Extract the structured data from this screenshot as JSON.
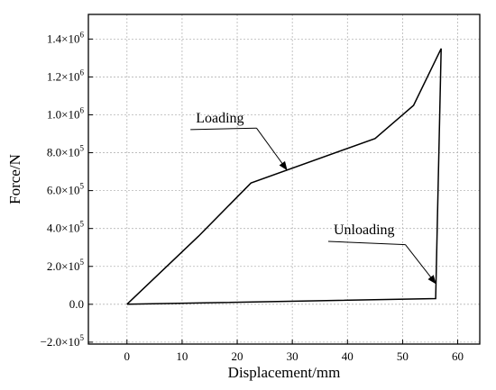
{
  "chart_data": {
    "type": "line",
    "title": "",
    "xlabel": "Displacement/mm",
    "ylabel": "Force/N",
    "xlim": [
      -7,
      64
    ],
    "ylim": [
      -210000,
      1530000
    ],
    "grid": true,
    "legend": "none",
    "x_ticks": [
      {
        "value": 0,
        "label": "0"
      },
      {
        "value": 10,
        "label": "10"
      },
      {
        "value": 20,
        "label": "20"
      },
      {
        "value": 30,
        "label": "30"
      },
      {
        "value": 40,
        "label": "40"
      },
      {
        "value": 50,
        "label": "50"
      },
      {
        "value": 60,
        "label": "60"
      }
    ],
    "y_ticks": [
      {
        "value": -200000,
        "mantissa": "−2.0×10",
        "exp": "5"
      },
      {
        "value": 0,
        "mantissa": "0.0",
        "exp": ""
      },
      {
        "value": 200000,
        "mantissa": "2.0×10",
        "exp": "5"
      },
      {
        "value": 400000,
        "mantissa": "4.0×10",
        "exp": "5"
      },
      {
        "value": 600000,
        "mantissa": "6.0×10",
        "exp": "5"
      },
      {
        "value": 800000,
        "mantissa": "8.0×10",
        "exp": "5"
      },
      {
        "value": 1000000,
        "mantissa": "1.0×10",
        "exp": "6"
      },
      {
        "value": 1200000,
        "mantissa": "1.2×10",
        "exp": "6"
      },
      {
        "value": 1400000,
        "mantissa": "1.4×10",
        "exp": "6"
      }
    ],
    "series": [
      {
        "color": "#000000",
        "x": [
          0,
          13,
          22.5,
          45,
          52,
          57,
          56,
          0
        ],
        "y": [
          0,
          360000,
          640000,
          875000,
          1050000,
          1350000,
          30000,
          0
        ]
      }
    ],
    "annotations": [
      {
        "text": "Loading",
        "arrow_to": [
          29,
          710000
        ],
        "text_at": [
          12.5,
          960000
        ],
        "leader_end": [
          23.5,
          930000
        ]
      },
      {
        "text": "Unloading",
        "arrow_to": [
          56,
          110000
        ],
        "text_at": [
          37.5,
          370000
        ],
        "leader_end": [
          50.5,
          315000
        ]
      }
    ]
  }
}
